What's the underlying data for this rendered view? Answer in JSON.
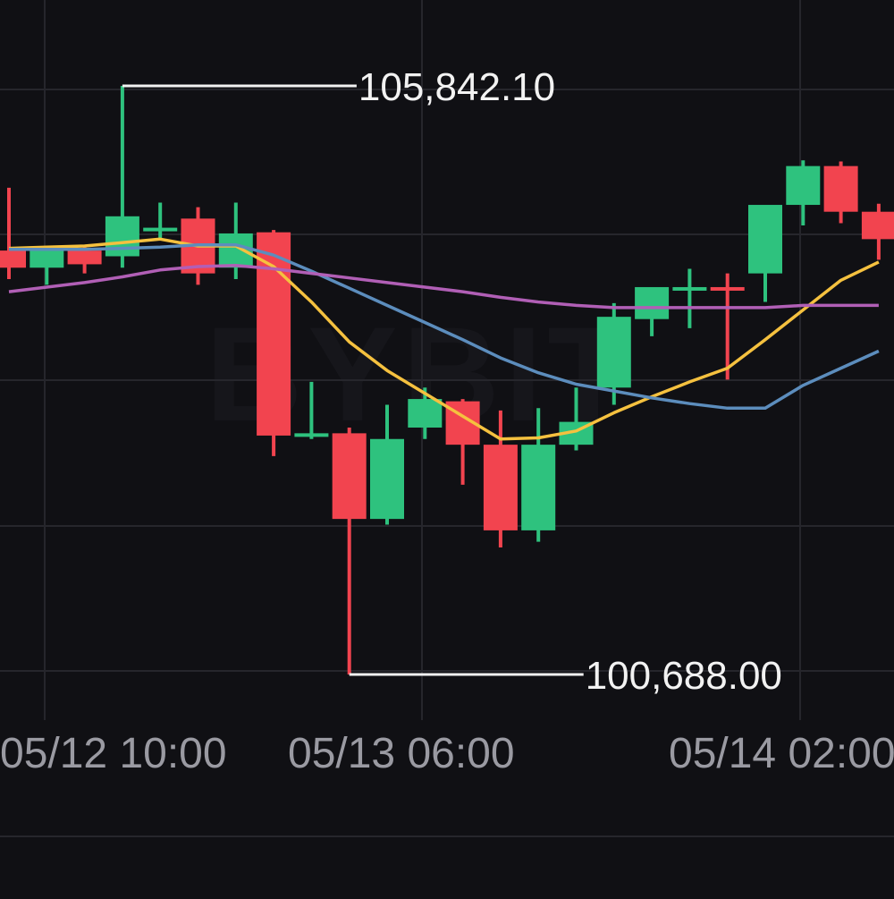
{
  "chart_data": {
    "type": "candlestick",
    "x_ticks": [
      "05/12 10:00",
      "05/13 06:00",
      "05/14 02:00"
    ],
    "candles": [
      {
        "o": 104400,
        "h": 104950,
        "l": 104150,
        "c": 104250
      },
      {
        "o": 104250,
        "h": 104400,
        "l": 104100,
        "c": 104400
      },
      {
        "o": 104400,
        "h": 104450,
        "l": 104200,
        "c": 104280
      },
      {
        "o": 104350,
        "h": 105842.1,
        "l": 104250,
        "c": 104700
      },
      {
        "o": 104600,
        "h": 104820,
        "l": 104500,
        "c": 104600
      },
      {
        "o": 104680,
        "h": 104780,
        "l": 104100,
        "c": 104200
      },
      {
        "o": 104250,
        "h": 104820,
        "l": 104150,
        "c": 104550
      },
      {
        "o": 104560,
        "h": 104580,
        "l": 102600,
        "c": 102780
      },
      {
        "o": 102800,
        "h": 103250,
        "l": 102750,
        "c": 102800
      },
      {
        "o": 102800,
        "h": 102850,
        "l": 100688.0,
        "c": 102050
      },
      {
        "o": 102050,
        "h": 103050,
        "l": 102000,
        "c": 102750
      },
      {
        "o": 102850,
        "h": 103200,
        "l": 102750,
        "c": 103100
      },
      {
        "o": 103080,
        "h": 103100,
        "l": 102350,
        "c": 102700
      },
      {
        "o": 102700,
        "h": 103000,
        "l": 101800,
        "c": 101950
      },
      {
        "o": 101950,
        "h": 103020,
        "l": 101850,
        "c": 102700
      },
      {
        "o": 102700,
        "h": 103200,
        "l": 102650,
        "c": 102900
      },
      {
        "o": 103200,
        "h": 103940,
        "l": 103050,
        "c": 103820
      },
      {
        "o": 103800,
        "h": 104060,
        "l": 103650,
        "c": 104080
      },
      {
        "o": 104080,
        "h": 104240,
        "l": 103720,
        "c": 104080
      },
      {
        "o": 104080,
        "h": 104200,
        "l": 103270,
        "c": 104050
      },
      {
        "o": 104200,
        "h": 104750,
        "l": 103950,
        "c": 104800
      },
      {
        "o": 104800,
        "h": 105190,
        "l": 104620,
        "c": 105140
      },
      {
        "o": 105140,
        "h": 105180,
        "l": 104640,
        "c": 104740
      },
      {
        "o": 104740,
        "h": 104810,
        "l": 104320,
        "c": 104500
      }
    ],
    "series": [
      {
        "color": "#f5c13f",
        "values": [
          104420,
          104430,
          104440,
          104470,
          104500,
          104440,
          104440,
          104260,
          103950,
          103600,
          103350,
          103150,
          102950,
          102750,
          102760,
          102820,
          102980,
          103120,
          103250,
          103370,
          103620,
          103880,
          104140,
          104300
        ]
      },
      {
        "color": "#5c8dbd",
        "values": [
          104410,
          104410,
          104410,
          104420,
          104430,
          104450,
          104450,
          104360,
          104220,
          104070,
          103920,
          103770,
          103620,
          103460,
          103330,
          103230,
          103170,
          103110,
          103060,
          103020,
          103020,
          103220,
          103370,
          103520
        ]
      },
      {
        "color": "#b15fb6",
        "values": [
          104040,
          104080,
          104120,
          104170,
          104230,
          104260,
          104270,
          104240,
          104200,
          104160,
          104120,
          104080,
          104040,
          103990,
          103950,
          103920,
          103900,
          103900,
          103900,
          103900,
          103900,
          103920,
          103920,
          103920
        ]
      }
    ],
    "max_label": "105,842.10",
    "min_label": "100,688.00",
    "up_color": "#2ec27e",
    "down_color": "#f2444f",
    "watermark": "BYBIT",
    "grid": true
  }
}
